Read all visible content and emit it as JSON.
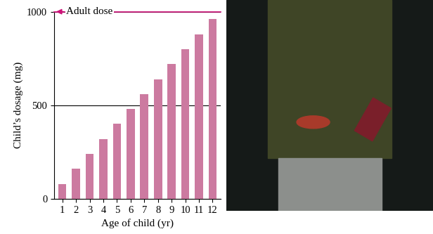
{
  "chart_data": {
    "type": "bar",
    "x_label": "Age of child (yr)",
    "y_label": "Child’s dosage (mg)",
    "categories": [
      "1",
      "2",
      "3",
      "4",
      "5",
      "6",
      "7",
      "8",
      "9",
      "10",
      "11",
      "12"
    ],
    "values": [
      80,
      160,
      240,
      320,
      400,
      480,
      560,
      640,
      720,
      800,
      880,
      960
    ],
    "color": "#cc7aa0",
    "ylim": [
      0,
      1000
    ],
    "yticks": [
      0,
      500,
      1000
    ],
    "grid": true,
    "annotations": [
      {
        "text": "Adult dose",
        "value": 1000,
        "color": "#cc1177"
      }
    ]
  }
}
